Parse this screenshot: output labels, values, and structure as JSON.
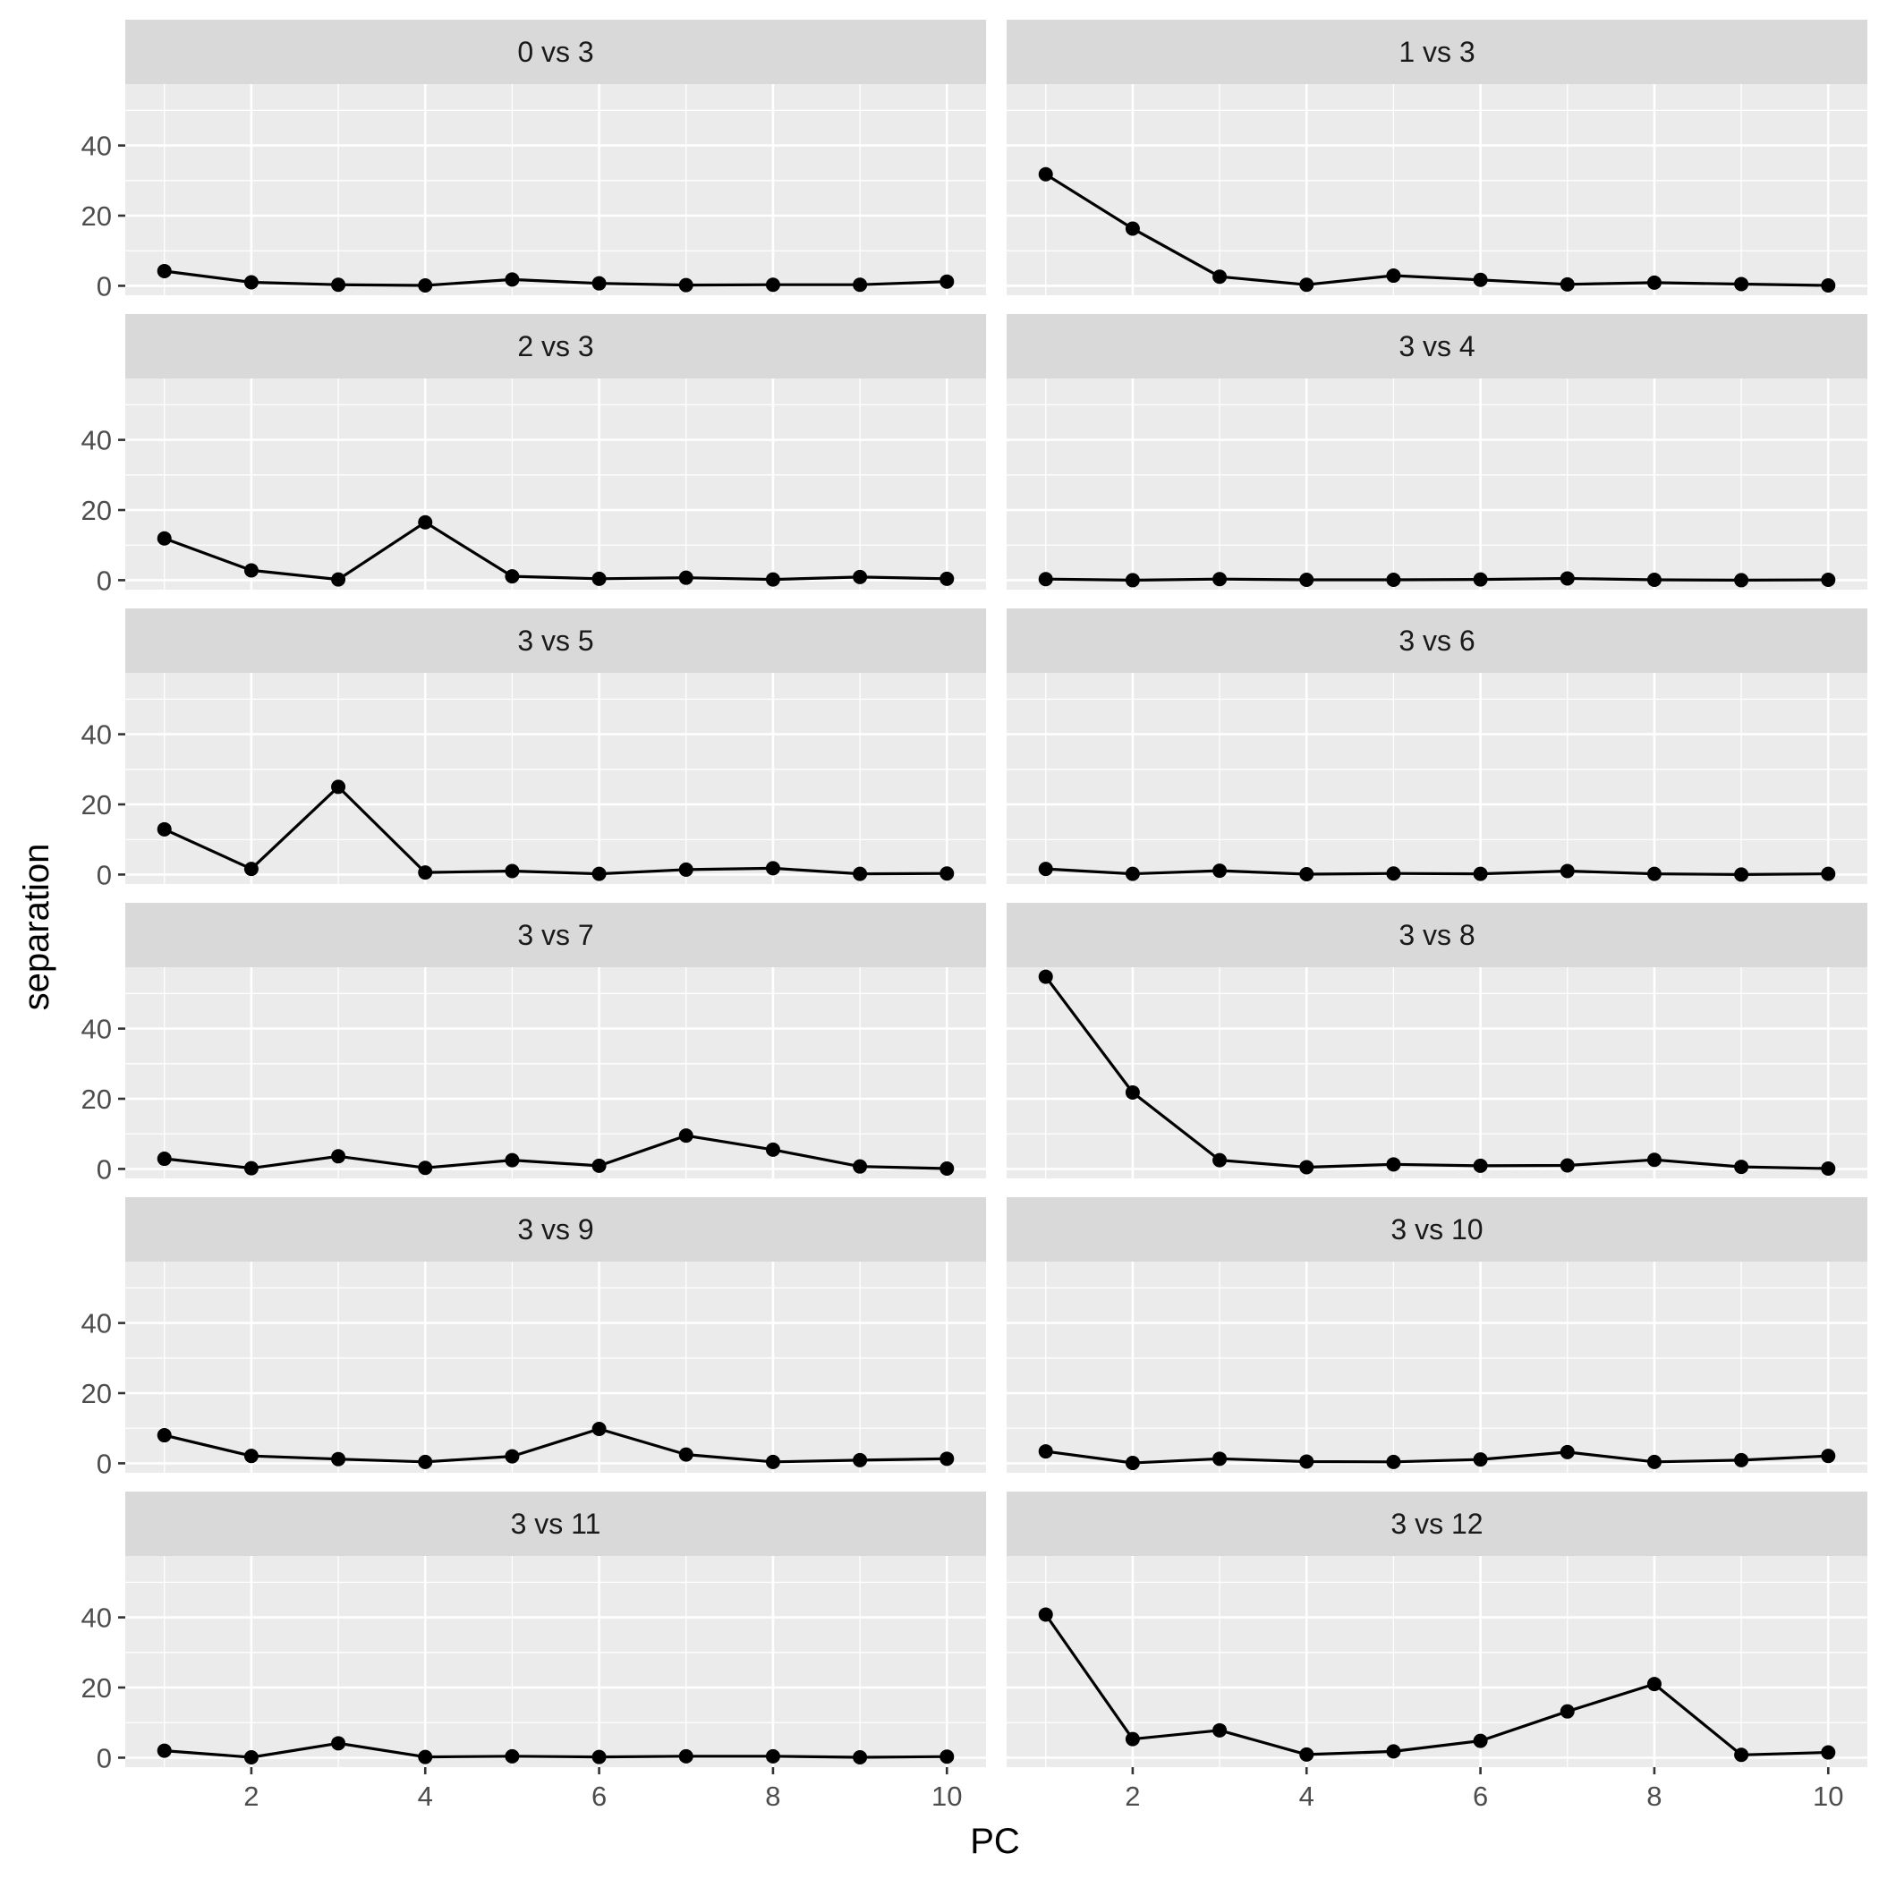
{
  "chart_data": {
    "type": "line",
    "facets": "2 columns x 6 rows",
    "xlabel": "PC",
    "ylabel": "separation",
    "x": [
      1,
      2,
      3,
      4,
      5,
      6,
      7,
      8,
      9,
      10
    ],
    "xlim": [
      0.55,
      10.45
    ],
    "ylim": [
      -2.7,
      57.5
    ],
    "x_ticks": [
      2,
      4,
      6,
      8,
      10
    ],
    "x_tick_labels": [
      "2",
      "4",
      "6",
      "8",
      "10"
    ],
    "y_ticks": [
      0,
      20,
      40
    ],
    "y_tick_labels": [
      "0",
      "20",
      "40"
    ],
    "grid": true,
    "line_color": "#000000",
    "panels": [
      {
        "title": "0 vs 3",
        "values": [
          4.2,
          1.0,
          0.3,
          0.1,
          1.8,
          0.7,
          0.2,
          0.3,
          0.3,
          1.2
        ]
      },
      {
        "title": "1 vs 3",
        "values": [
          31.8,
          16.3,
          2.6,
          0.3,
          2.9,
          1.7,
          0.4,
          0.9,
          0.5,
          0.1
        ]
      },
      {
        "title": "2 vs 3",
        "values": [
          11.9,
          2.8,
          0.2,
          16.5,
          1.1,
          0.4,
          0.7,
          0.2,
          0.9,
          0.4
        ]
      },
      {
        "title": "3 vs 4",
        "values": [
          0.3,
          0.0,
          0.3,
          0.1,
          0.1,
          0.2,
          0.5,
          0.1,
          0.0,
          0.1
        ]
      },
      {
        "title": "3 vs 5",
        "values": [
          12.9,
          1.6,
          25.0,
          0.6,
          1.0,
          0.2,
          1.4,
          1.8,
          0.2,
          0.3
        ]
      },
      {
        "title": "3 vs 6",
        "values": [
          1.6,
          0.2,
          1.1,
          0.1,
          0.3,
          0.2,
          1.0,
          0.2,
          0.0,
          0.2
        ]
      },
      {
        "title": "3 vs 7",
        "values": [
          2.9,
          0.2,
          3.6,
          0.3,
          2.5,
          0.9,
          9.5,
          5.5,
          0.7,
          0.1
        ]
      },
      {
        "title": "3 vs 8",
        "values": [
          54.8,
          21.8,
          2.5,
          0.5,
          1.3,
          0.9,
          1.0,
          2.6,
          0.6,
          0.1
        ]
      },
      {
        "title": "3 vs 9",
        "values": [
          8.0,
          2.1,
          1.2,
          0.4,
          2.0,
          9.8,
          2.5,
          0.4,
          0.9,
          1.3
        ]
      },
      {
        "title": "3 vs 10",
        "values": [
          3.4,
          0.1,
          1.3,
          0.5,
          0.4,
          1.1,
          3.2,
          0.4,
          0.9,
          2.1
        ]
      },
      {
        "title": "3 vs 11",
        "values": [
          2.0,
          0.1,
          4.1,
          0.2,
          0.4,
          0.2,
          0.4,
          0.4,
          0.1,
          0.3
        ]
      },
      {
        "title": "3 vs 12",
        "values": [
          40.8,
          5.3,
          7.8,
          0.9,
          1.8,
          4.8,
          13.2,
          21.0,
          0.8,
          1.5
        ]
      }
    ]
  }
}
